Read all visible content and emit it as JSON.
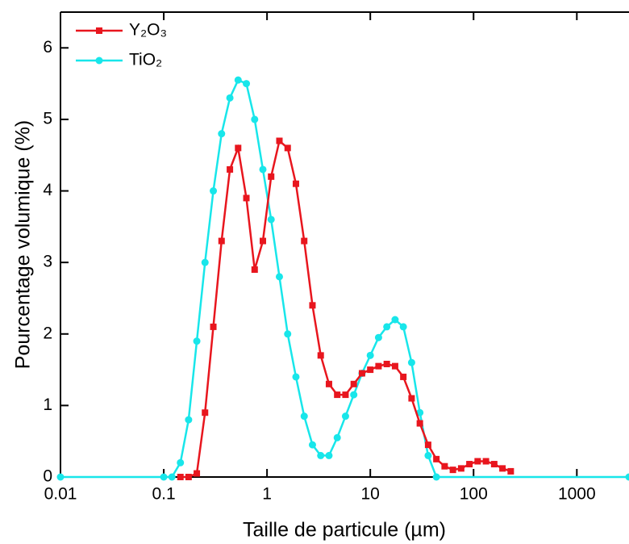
{
  "chart_data": {
    "type": "line",
    "x_label": "Taille de particule (µm)",
    "y_label": "Pourcentage volumique (%)",
    "x_log": true,
    "xlim": [
      0.01,
      3200
    ],
    "xticks": [
      0.01,
      0.1,
      1,
      10,
      100,
      1000
    ],
    "ylim": [
      0,
      6.5
    ],
    "yticks": [
      0,
      1,
      2,
      3,
      4,
      5,
      6
    ],
    "legend": "upper-left",
    "series": [
      {
        "name": "Y₂O₃",
        "color": "#e8161e",
        "marker": "square",
        "x": [
          0.145,
          0.174,
          0.209,
          0.251,
          0.302,
          0.363,
          0.437,
          0.525,
          0.631,
          0.759,
          0.912,
          1.096,
          1.318,
          1.585,
          1.905,
          2.291,
          2.754,
          3.311,
          3.981,
          4.786,
          5.754,
          6.918,
          8.318,
          10,
          12.02,
          14.45,
          17.38,
          20.89,
          25.12,
          30.2,
          36.31,
          43.65,
          52.48,
          63.1,
          75.86,
          91.2,
          109.6,
          131.8,
          158.5,
          190.5,
          229.1
        ],
        "values": [
          0,
          0,
          0.05,
          0.9,
          2.1,
          3.3,
          4.3,
          4.6,
          3.9,
          2.9,
          3.3,
          4.2,
          4.7,
          4.6,
          4.1,
          3.3,
          2.4,
          1.7,
          1.3,
          1.15,
          1.15,
          1.3,
          1.45,
          1.5,
          1.55,
          1.58,
          1.55,
          1.4,
          1.1,
          0.75,
          0.45,
          0.25,
          0.15,
          0.1,
          0.12,
          0.18,
          0.22,
          0.22,
          0.18,
          0.12,
          0.08
        ]
      },
      {
        "name": "TiO₂",
        "color": "#18e6ea",
        "marker": "circle",
        "x": [
          0.01,
          0.1,
          0.12,
          0.145,
          0.174,
          0.209,
          0.251,
          0.302,
          0.363,
          0.437,
          0.525,
          0.631,
          0.759,
          0.912,
          1.096,
          1.318,
          1.585,
          1.905,
          2.291,
          2.754,
          3.311,
          3.981,
          4.786,
          5.754,
          6.918,
          8.318,
          10,
          12.02,
          14.45,
          17.38,
          20.89,
          25.12,
          30.2,
          36.31,
          43.65,
          3200
        ],
        "values": [
          0,
          0,
          0,
          0.2,
          0.8,
          1.9,
          3.0,
          4.0,
          4.8,
          5.3,
          5.55,
          5.5,
          5.0,
          4.3,
          3.6,
          2.8,
          2.0,
          1.4,
          0.85,
          0.45,
          0.3,
          0.3,
          0.55,
          0.85,
          1.15,
          1.45,
          1.7,
          1.95,
          2.1,
          2.2,
          2.1,
          1.6,
          0.9,
          0.3,
          0,
          0
        ]
      }
    ]
  }
}
